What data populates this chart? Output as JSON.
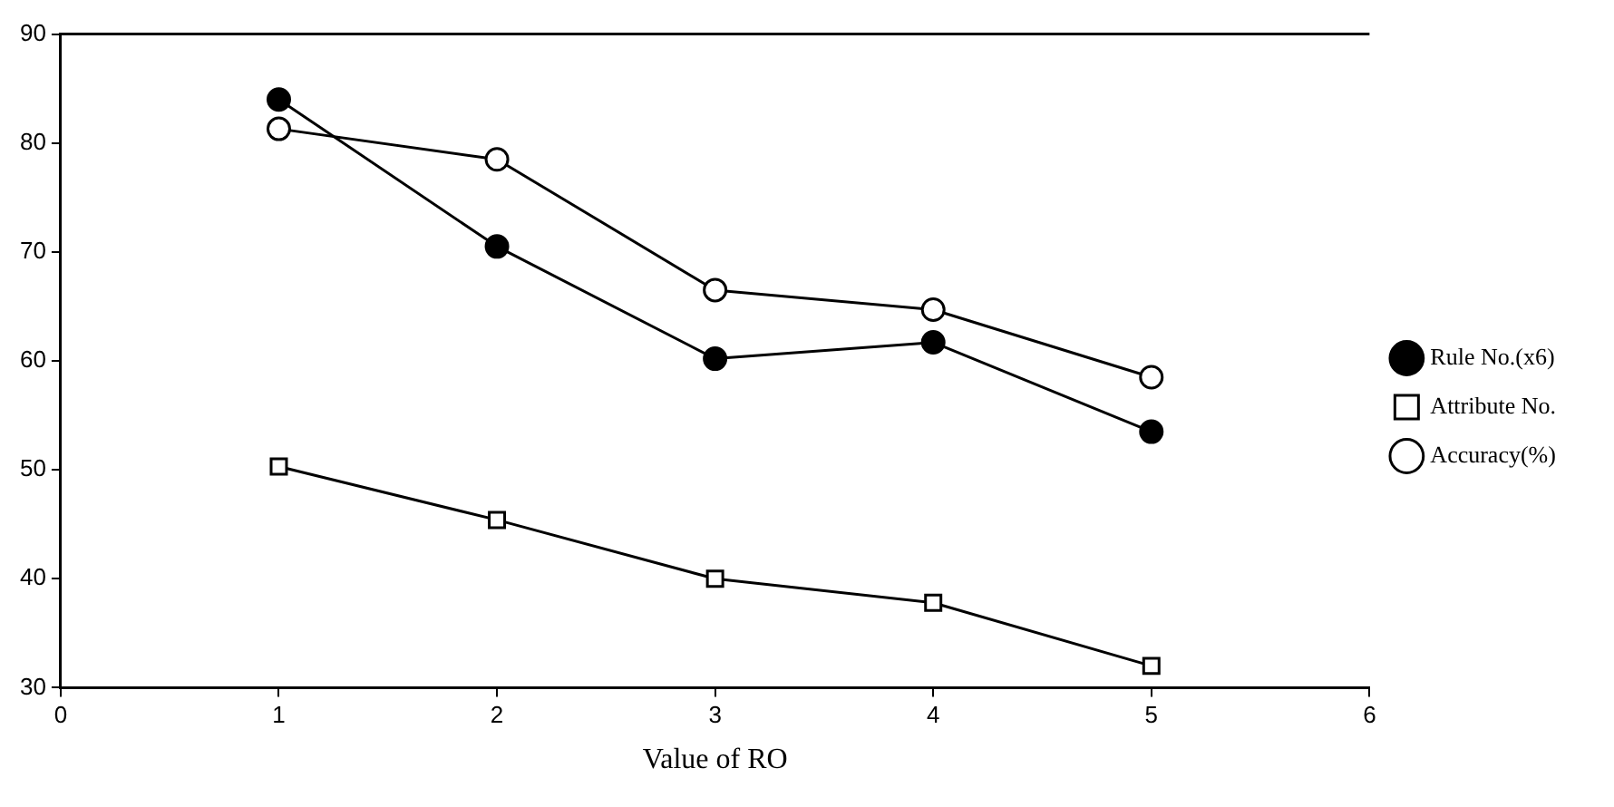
{
  "chart_data": {
    "type": "line",
    "xlabel": "Value of RO",
    "x": [
      1,
      2,
      3,
      4,
      5
    ],
    "series": [
      {
        "name": "Rule No.(x6)",
        "color": "#000000",
        "marker": "circle",
        "values": [
          84,
          70.5,
          60.2,
          61.7,
          53.5
        ]
      },
      {
        "name": "Attribute No.",
        "color": "#000000",
        "marker": "square",
        "values": [
          50.3,
          45.4,
          40,
          37.8,
          32
        ]
      },
      {
        "name": "Accuracy(%)",
        "color": "#000000",
        "marker": "circle",
        "values": [
          81.3,
          78.5,
          66.5,
          64.7,
          58.5
        ]
      }
    ],
    "xlim": [
      0,
      6
    ],
    "xticks": [
      0,
      1,
      2,
      3,
      4,
      5,
      6
    ],
    "ylim": [
      30,
      90
    ],
    "yticks": [
      30,
      40,
      50,
      60,
      70,
      80,
      90
    ],
    "grid": false,
    "legend": "right"
  }
}
